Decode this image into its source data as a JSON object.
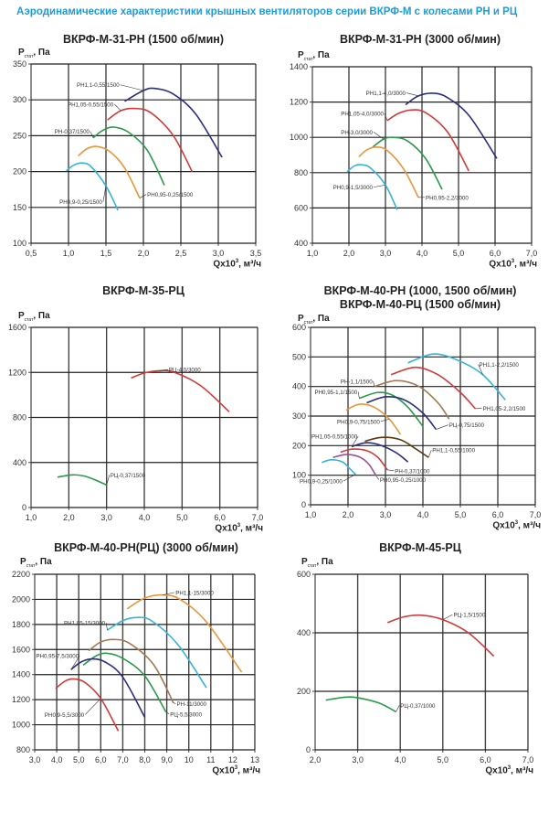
{
  "page_title": "Аэродинамические характеристики крышных вентиляторов серии ВКРФ-М с колесами РН и РЦ",
  "axis_text": {
    "y_main": "P",
    "y_sub": "стат",
    "y_unit": ", Па",
    "x_main": "Qx10",
    "x_sup": "3",
    "x_unit": ", м³/ч"
  },
  "colors": {
    "title": "#1f9bd7",
    "navy": "#2b2f7a",
    "red": "#d23a3a",
    "green": "#2a9a4a",
    "orange": "#e8963a",
    "cyan": "#36b4d8",
    "brown": "#a07a50",
    "purple": "#9b4f9b",
    "darkbrown": "#5a3a10"
  },
  "chart_data": [
    {
      "type": "line",
      "title": "ВКРФ-М-31-РН (1500 об/мин)",
      "xlim": [
        0.5,
        3.5
      ],
      "xstep": 0.5,
      "ylim": [
        100,
        350
      ],
      "ystep": 50,
      "grid": true,
      "xdec": 1,
      "series": [
        {
          "name": "РН1,1-0,55/1500",
          "color": "#2b2f7a",
          "points": [
            [
              1.75,
              298
            ],
            [
              2.0,
              313
            ],
            [
              2.15,
              316
            ],
            [
              2.4,
              308
            ],
            [
              2.7,
              280
            ],
            [
              3.05,
              220
            ]
          ]
        },
        {
          "name": "РН1,05-0,55/1500",
          "color": "#d23a3a",
          "points": [
            [
              1.52,
              272
            ],
            [
              1.7,
              285
            ],
            [
              1.88,
              288
            ],
            [
              2.1,
              282
            ],
            [
              2.4,
              250
            ],
            [
              2.65,
              200
            ]
          ]
        },
        {
          "name": "РН-0,37/1500",
          "color": "#2a9a4a",
          "points": [
            [
              1.33,
              247
            ],
            [
              1.45,
              257
            ],
            [
              1.6,
              262
            ],
            [
              1.8,
              255
            ],
            [
              2.05,
              230
            ],
            [
              2.28,
              181
            ]
          ]
        },
        {
          "name": "РН0,95-0,25/1500",
          "color": "#e8963a",
          "points": [
            [
              1.13,
              222
            ],
            [
              1.25,
              232
            ],
            [
              1.38,
              235
            ],
            [
              1.55,
              228
            ],
            [
              1.75,
              205
            ],
            [
              1.95,
              163
            ]
          ]
        },
        {
          "name": "РН0,9-0,25/1500",
          "color": "#36b4d8",
          "points": [
            [
              0.97,
              201
            ],
            [
              1.07,
              209
            ],
            [
              1.18,
              212
            ],
            [
              1.3,
              207
            ],
            [
              1.5,
              180
            ],
            [
              1.66,
              146
            ]
          ]
        }
      ]
    },
    {
      "type": "line",
      "title": "ВКРФ-М-31-РН (3000 об/мин)",
      "xlim": [
        1,
        7
      ],
      "xstep": 1,
      "ylim": [
        400,
        1400
      ],
      "ystep": 200,
      "grid": true,
      "xdec": 1,
      "series": [
        {
          "name": "РН1,1-4,0/3000",
          "color": "#2b2f7a",
          "points": [
            [
              3.55,
              1185
            ],
            [
              3.9,
              1235
            ],
            [
              4.3,
              1250
            ],
            [
              4.7,
              1225
            ],
            [
              5.3,
              1120
            ],
            [
              6.05,
              880
            ]
          ]
        },
        {
          "name": "РН1,05-4,0/3000",
          "color": "#d23a3a",
          "points": [
            [
              3.05,
              1095
            ],
            [
              3.35,
              1135
            ],
            [
              3.7,
              1155
            ],
            [
              4.1,
              1140
            ],
            [
              4.7,
              1030
            ],
            [
              5.28,
              810
            ]
          ]
        },
        {
          "name": "РН-3,0/3000",
          "color": "#2a9a4a",
          "points": [
            [
              2.65,
              945
            ],
            [
              2.95,
              990
            ],
            [
              3.2,
              1000
            ],
            [
              3.6,
              980
            ],
            [
              4.1,
              880
            ],
            [
              4.55,
              705
            ]
          ]
        },
        {
          "name": "РН0,95-2,2/3000",
          "color": "#e8963a",
          "points": [
            [
              2.27,
              890
            ],
            [
              2.5,
              930
            ],
            [
              2.75,
              945
            ],
            [
              3.05,
              925
            ],
            [
              3.5,
              820
            ],
            [
              3.9,
              660
            ]
          ]
        },
        {
          "name": "РН0,9-1,5/3000",
          "color": "#36b4d8",
          "points": [
            [
              1.95,
              805
            ],
            [
              2.15,
              838
            ],
            [
              2.35,
              845
            ],
            [
              2.6,
              825
            ],
            [
              3.0,
              730
            ],
            [
              3.32,
              590
            ]
          ]
        }
      ]
    },
    {
      "type": "line",
      "title": "ВКРФ-М-35-РЦ",
      "xlim": [
        1,
        7
      ],
      "xstep": 1,
      "ylim": [
        0,
        1600
      ],
      "ystep": 400,
      "grid": true,
      "xdec": 1,
      "series": [
        {
          "name": "РЦ-4,0/3000",
          "color": "#d23a3a",
          "points": [
            [
              3.65,
              1150
            ],
            [
              4.0,
              1195
            ],
            [
              4.4,
              1215
            ],
            [
              4.8,
              1200
            ],
            [
              5.5,
              1080
            ],
            [
              6.25,
              850
            ]
          ]
        },
        {
          "name": "РЦ-0,37/1500",
          "color": "#2a9a4a",
          "points": [
            [
              1.7,
              270
            ],
            [
              2.1,
              290
            ],
            [
              2.4,
              280
            ],
            [
              2.7,
              245
            ],
            [
              3.0,
              200
            ]
          ]
        }
      ]
    },
    {
      "type": "line",
      "title": "ВКРФ-М-40-РН (1000, 1500 об/мин)",
      "title2": "ВКРФ-М-40-РЦ (1500 об/мин)",
      "xlim": [
        1,
        7
      ],
      "xstep": 1,
      "ylim": [
        0,
        600
      ],
      "ystep": 100,
      "grid": true,
      "xdec": 1,
      "series": [
        {
          "name": "РН1,1-2,2/1500",
          "color": "#36b4d8",
          "points": [
            [
              3.6,
              480
            ],
            [
              4.3,
              510
            ],
            [
              5.0,
              485
            ],
            [
              5.6,
              440
            ],
            [
              6.2,
              355
            ]
          ]
        },
        {
          "name": "РН1,05-2,2/1500",
          "color": "#d23a3a",
          "points": [
            [
              3.15,
              440
            ],
            [
              3.8,
              465
            ],
            [
              4.4,
              440
            ],
            [
              5.0,
              380
            ],
            [
              5.4,
              325
            ]
          ]
        },
        {
          "name": "РН-1,1/1500",
          "color": "#a07a50",
          "points": [
            [
              2.7,
              400
            ],
            [
              3.3,
              420
            ],
            [
              3.9,
              400
            ],
            [
              4.4,
              345
            ],
            [
              4.7,
              290
            ]
          ]
        },
        {
          "name": "РН0,95-1,1/1500",
          "color": "#2a9a4a",
          "points": [
            [
              2.3,
              360
            ],
            [
              2.8,
              380
            ],
            [
              3.2,
              370
            ],
            [
              3.6,
              330
            ],
            [
              4.0,
              265
            ]
          ]
        },
        {
          "name": "РЦ-0,75/1500",
          "color": "#2b2f7a",
          "points": [
            [
              2.5,
              345
            ],
            [
              3.0,
              365
            ],
            [
              3.5,
              355
            ],
            [
              4.0,
              310
            ],
            [
              4.35,
              255
            ]
          ]
        },
        {
          "name": "РН0,9-0,75/1500",
          "color": "#e8963a",
          "points": [
            [
              1.95,
              320
            ],
            [
              2.3,
              340
            ],
            [
              2.7,
              330
            ],
            [
              3.1,
              290
            ],
            [
              3.4,
              238
            ]
          ]
        },
        {
          "name": "РН1,1-0,55/1000",
          "color": "#5a3a10",
          "points": [
            [
              2.45,
              215
            ],
            [
              2.9,
              228
            ],
            [
              3.4,
              220
            ],
            [
              3.8,
              190
            ],
            [
              4.15,
              160
            ]
          ]
        },
        {
          "name": "РН1,05-0,55/1000",
          "color": "#2b2f7a",
          "points": [
            [
              2.1,
              197
            ],
            [
              2.5,
              210
            ],
            [
              2.9,
              200
            ],
            [
              3.3,
              175
            ],
            [
              3.6,
              145
            ]
          ]
        },
        {
          "name": "РН-0,37/1000",
          "color": "#d23a3a",
          "points": [
            [
              1.8,
              178
            ],
            [
              2.1,
              188
            ],
            [
              2.5,
              183
            ],
            [
              2.8,
              160
            ],
            [
              3.05,
              118
            ]
          ]
        },
        {
          "name": "РН0,95-0,25/1000",
          "color": "#9b4f9b",
          "points": [
            [
              1.6,
              160
            ],
            [
              1.95,
              170
            ],
            [
              2.3,
              162
            ],
            [
              2.55,
              138
            ],
            [
              2.75,
              98
            ]
          ]
        },
        {
          "name": "РН0,9-0,25/1000",
          "color": "#36b4d8",
          "points": [
            [
              1.3,
              143
            ],
            [
              1.55,
              152
            ],
            [
              1.85,
              145
            ],
            [
              2.05,
              122
            ],
            [
              2.2,
              103
            ]
          ]
        }
      ]
    },
    {
      "type": "line",
      "title": "ВКРФ-М-40-РН(РЦ) (3000 об/мин)",
      "xlim": [
        3,
        13
      ],
      "xstep": 1,
      "ylim": [
        800,
        2200
      ],
      "ystep": 200,
      "grid": true,
      "xdec": "auto",
      "series": [
        {
          "name": "РН1,1-15/3000",
          "color": "#e8963a",
          "points": [
            [
              7.2,
              1925
            ],
            [
              8.0,
              2010
            ],
            [
              8.8,
              2035
            ],
            [
              9.6,
              2000
            ],
            [
              10.8,
              1820
            ],
            [
              12.4,
              1420
            ]
          ]
        },
        {
          "name": "РН1,05-15/3000",
          "color": "#36b4d8",
          "points": [
            [
              6.3,
              1755
            ],
            [
              7.0,
              1830
            ],
            [
              7.6,
              1855
            ],
            [
              8.3,
              1830
            ],
            [
              9.5,
              1640
            ],
            [
              10.8,
              1295
            ]
          ]
        },
        {
          "name": "РН-11/3000",
          "color": "#a07a50",
          "points": [
            [
              5.45,
              1590
            ],
            [
              6.0,
              1660
            ],
            [
              6.6,
              1680
            ],
            [
              7.3,
              1650
            ],
            [
              8.4,
              1480
            ],
            [
              9.3,
              1175
            ]
          ]
        },
        {
          "name": "РЦ-5,5/3000",
          "color": "#2a9a4a",
          "points": [
            [
              5.2,
              1475
            ],
            [
              5.8,
              1550
            ],
            [
              6.3,
              1570
            ],
            [
              7.0,
              1530
            ],
            [
              8.0,
              1390
            ],
            [
              8.95,
              1105
            ]
          ]
        },
        {
          "name": "РН0,95-7,5/3000",
          "color": "#2b2f7a",
          "points": [
            [
              4.65,
              1440
            ],
            [
              5.1,
              1500
            ],
            [
              5.6,
              1525
            ],
            [
              6.2,
              1500
            ],
            [
              7.0,
              1380
            ],
            [
              8.0,
              1060
            ]
          ]
        },
        {
          "name": "РН0,9-5,5/3000",
          "color": "#d23a3a",
          "points": [
            [
              3.95,
              1290
            ],
            [
              4.4,
              1350
            ],
            [
              4.8,
              1365
            ],
            [
              5.3,
              1335
            ],
            [
              6.0,
              1210
            ],
            [
              6.8,
              950
            ]
          ]
        }
      ]
    },
    {
      "type": "line",
      "title": "ВКРФ-М-45-РЦ",
      "xlim": [
        2,
        7
      ],
      "xstep": 1,
      "ylim": [
        0,
        600
      ],
      "ystep": 200,
      "grid": true,
      "xdec": 1,
      "series": [
        {
          "name": "РЦ-1,5/1500",
          "color": "#d23a3a",
          "points": [
            [
              3.7,
              435
            ],
            [
              4.1,
              455
            ],
            [
              4.5,
              460
            ],
            [
              5.0,
              445
            ],
            [
              5.6,
              400
            ],
            [
              6.2,
              320
            ]
          ]
        },
        {
          "name": "РЦ-0,37/1000",
          "color": "#2a9a4a",
          "points": [
            [
              2.25,
              170
            ],
            [
              2.7,
              180
            ],
            [
              3.0,
              178
            ],
            [
              3.5,
              160
            ],
            [
              3.9,
              130
            ]
          ]
        }
      ]
    }
  ]
}
